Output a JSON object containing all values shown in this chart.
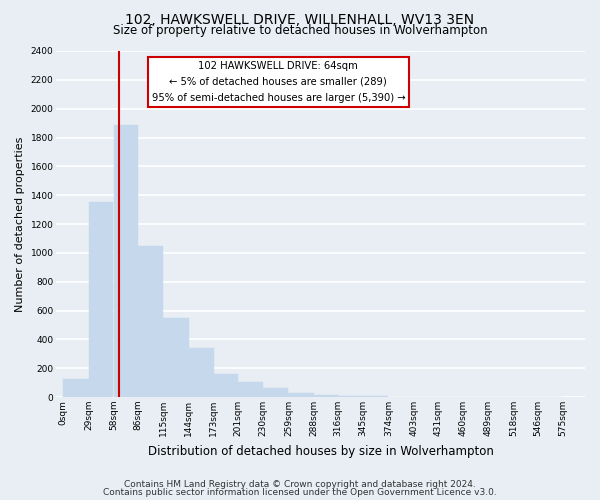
{
  "title": "102, HAWKSWELL DRIVE, WILLENHALL, WV13 3EN",
  "subtitle": "Size of property relative to detached houses in Wolverhampton",
  "xlabel": "Distribution of detached houses by size in Wolverhampton",
  "ylabel": "Number of detached properties",
  "bin_labels": [
    "0sqm",
    "29sqm",
    "58sqm",
    "86sqm",
    "115sqm",
    "144sqm",
    "173sqm",
    "201sqm",
    "230sqm",
    "259sqm",
    "288sqm",
    "316sqm",
    "345sqm",
    "374sqm",
    "403sqm",
    "431sqm",
    "460sqm",
    "489sqm",
    "518sqm",
    "546sqm",
    "575sqm"
  ],
  "bar_heights": [
    125,
    1350,
    1890,
    1050,
    550,
    340,
    160,
    105,
    60,
    30,
    15,
    8,
    4,
    2,
    1,
    1,
    0,
    0,
    0,
    0
  ],
  "bar_color": "#c5d8ec",
  "bar_edge_color": "#c5d8ec",
  "annotation_title": "102 HAWKSWELL DRIVE: 64sqm",
  "annotation_line1": "← 5% of detached houses are smaller (289)",
  "annotation_line2": "95% of semi-detached houses are larger (5,390) →",
  "vline_x": 64,
  "vline_color": "#cc0000",
  "annotation_box_color": "#ffffff",
  "annotation_box_edge": "#cc0000",
  "ylim": [
    0,
    2400
  ],
  "yticks": [
    0,
    200,
    400,
    600,
    800,
    1000,
    1200,
    1400,
    1600,
    1800,
    2000,
    2200,
    2400
  ],
  "footnote1": "Contains HM Land Registry data © Crown copyright and database right 2024.",
  "footnote2": "Contains public sector information licensed under the Open Government Licence v3.0.",
  "background_color": "#e8eef4",
  "grid_color": "#ffffff",
  "title_fontsize": 10,
  "subtitle_fontsize": 8.5,
  "xlabel_fontsize": 8.5,
  "ylabel_fontsize": 8,
  "footnote_fontsize": 6.5,
  "tick_fontsize": 6.5
}
